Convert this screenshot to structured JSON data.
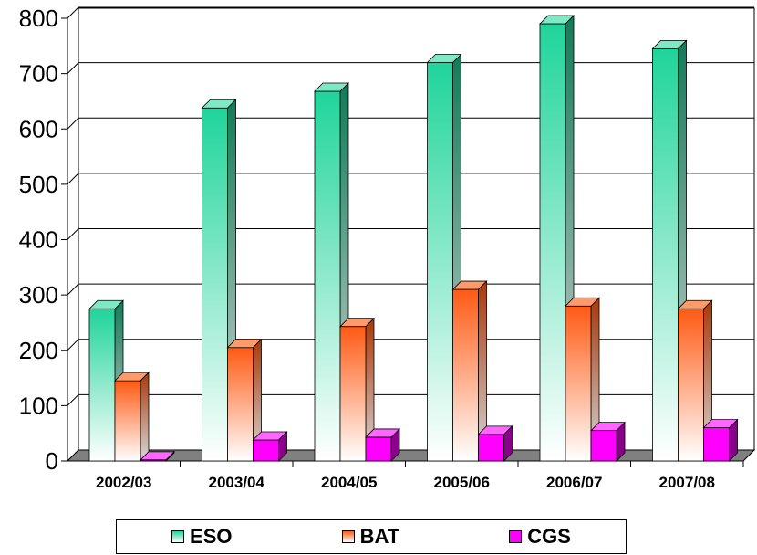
{
  "chart_data": {
    "type": "bar",
    "categories": [
      "2002/03",
      "2003/04",
      "2004/05",
      "2005/06",
      "2006/07",
      "2007/08"
    ],
    "series": [
      {
        "name": "ESO",
        "values": [
          275,
          638,
          668,
          720,
          790,
          745
        ],
        "color": "#1fd49a",
        "color_light": "#ffffff",
        "side": "#127a58",
        "top": "#7fe8c4"
      },
      {
        "name": "BAT",
        "values": [
          145,
          205,
          243,
          310,
          280,
          275
        ],
        "color": "#ff5a14",
        "color_light": "#ffffff",
        "side": "#a8380a",
        "top": "#ff9a6a"
      },
      {
        "name": "CGS",
        "values": [
          2,
          38,
          43,
          48,
          55,
          60
        ],
        "color": "#ff00ff",
        "color_light": "#ff00ff",
        "side": "#8a008a",
        "top": "#ff66ff"
      }
    ],
    "ylim": [
      0,
      800
    ],
    "yticks": [
      "0",
      "100",
      "200",
      "300",
      "400",
      "500",
      "600",
      "700",
      "800"
    ],
    "grid": true,
    "legend_position": "bottom"
  }
}
